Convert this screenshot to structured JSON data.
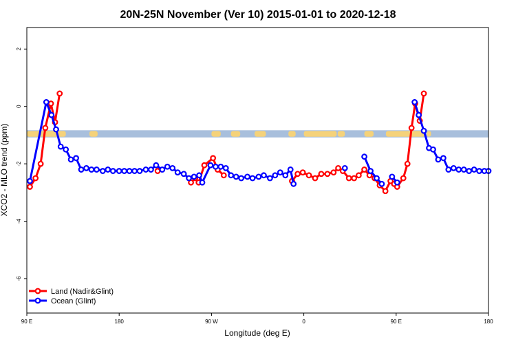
{
  "chart_data": {
    "type": "line",
    "title": "20N-25N November (Ver 10)   2015-01-01 to 2020-12-18",
    "xlabel": "Longitude (deg E)",
    "ylabel": "XCO2 - MLO trend (ppm)",
    "xlim": [
      90,
      540
    ],
    "ylim": [
      -7.2,
      2.75
    ],
    "x_ticks": [
      {
        "value": 90,
        "label": "90 E"
      },
      {
        "value": 180,
        "label": "180"
      },
      {
        "value": 270,
        "label": "90 W"
      },
      {
        "value": 360,
        "label": "0"
      },
      {
        "value": 450,
        "label": "90 E"
      },
      {
        "value": 540,
        "label": "180"
      }
    ],
    "y_ticks": [
      {
        "value": 2,
        "label": "2"
      },
      {
        "value": 0,
        "label": "0"
      },
      {
        "value": -2,
        "label": "-2"
      },
      {
        "value": -4,
        "label": "-4"
      },
      {
        "value": -6,
        "label": "-6"
      }
    ],
    "map_strip": {
      "ymin": -1.08,
      "ymax": -0.83,
      "ocean_color": "#a8bfdc",
      "land_color": "#f5d27a"
    },
    "series": [
      {
        "name": "Land (Nadir&Glint)",
        "color": "#ff0000",
        "segments": [
          [
            [
              93,
              -2.8
            ],
            [
              98.5,
              -2.5
            ],
            [
              103.5,
              -2.0
            ],
            [
              108,
              -0.75
            ],
            [
              113.5,
              0.1
            ],
            [
              117.5,
              -0.55
            ],
            [
              122,
              0.45
            ]
          ],
          [
            [
              217.5,
              -2.25
            ]
          ],
          [
            [
              250,
              -2.65
            ],
            [
              254,
              -2.5
            ],
            [
              257.5,
              -2.65
            ],
            [
              263,
              -2.05
            ],
            [
              271.5,
              -1.8
            ],
            [
              276,
              -2.2
            ],
            [
              282,
              -2.4
            ]
          ],
          [
            [
              348.5,
              -2.6
            ],
            [
              354,
              -2.35
            ],
            [
              359,
              -2.3
            ],
            [
              365,
              -2.4
            ],
            [
              371,
              -2.5
            ],
            [
              377,
              -2.35
            ],
            [
              383,
              -2.35
            ],
            [
              389,
              -2.3
            ],
            [
              393.5,
              -2.15
            ],
            [
              398,
              -2.25
            ],
            [
              404,
              -2.5
            ],
            [
              409,
              -2.5
            ],
            [
              413.5,
              -2.4
            ],
            [
              419,
              -2.2
            ],
            [
              424,
              -2.4
            ],
            [
              429,
              -2.5
            ],
            [
              434,
              -2.75
            ],
            [
              439.5,
              -2.95
            ],
            [
              444.5,
              -2.6
            ],
            [
              448,
              -2.7
            ],
            [
              451,
              -2.8
            ],
            [
              457,
              -2.5
            ],
            [
              461,
              -2.0
            ],
            [
              465,
              -0.75
            ],
            [
              468.5,
              0.1
            ],
            [
              473,
              -0.5
            ],
            [
              477,
              0.45
            ]
          ]
        ]
      },
      {
        "name": "Ocean (Glint)",
        "color": "#0000ff",
        "segments": [
          [
            [
              93,
              -2.6
            ],
            [
              109,
              0.15
            ],
            [
              114,
              -0.3
            ],
            [
              118.5,
              -0.8
            ],
            [
              123,
              -1.4
            ],
            [
              128,
              -1.5
            ],
            [
              133,
              -1.85
            ],
            [
              138,
              -1.8
            ],
            [
              143,
              -2.2
            ],
            [
              148,
              -2.15
            ],
            [
              153,
              -2.2
            ],
            [
              158,
              -2.2
            ],
            [
              164,
              -2.25
            ],
            [
              169,
              -2.2
            ],
            [
              174,
              -2.25
            ],
            [
              180,
              -2.25
            ],
            [
              185,
              -2.25
            ],
            [
              190,
              -2.25
            ],
            [
              195,
              -2.25
            ],
            [
              200,
              -2.25
            ],
            [
              206,
              -2.2
            ],
            [
              211,
              -2.2
            ],
            [
              216,
              -2.05
            ],
            [
              222,
              -2.2
            ],
            [
              227,
              -2.1
            ],
            [
              232,
              -2.15
            ],
            [
              237,
              -2.3
            ],
            [
              243,
              -2.35
            ],
            [
              248,
              -2.5
            ],
            [
              253,
              -2.45
            ],
            [
              258,
              -2.4
            ],
            [
              261,
              -2.65
            ],
            [
              269,
              -2.05
            ],
            [
              274,
              -2.1
            ],
            [
              279,
              -2.1
            ],
            [
              284,
              -2.15
            ],
            [
              289,
              -2.4
            ],
            [
              294,
              -2.45
            ],
            [
              299,
              -2.5
            ],
            [
              305,
              -2.45
            ],
            [
              310,
              -2.5
            ],
            [
              316,
              -2.45
            ],
            [
              321,
              -2.4
            ],
            [
              327,
              -2.5
            ],
            [
              332,
              -2.4
            ],
            [
              337,
              -2.3
            ],
            [
              342,
              -2.4
            ],
            [
              347,
              -2.2
            ],
            [
              350,
              -2.7
            ]
          ],
          [
            [
              400,
              -2.15
            ]
          ],
          [
            [
              419,
              -1.75
            ],
            [
              425,
              -2.25
            ],
            [
              431,
              -2.5
            ],
            [
              436,
              -2.7
            ]
          ],
          [
            [
              446,
              -2.45
            ],
            [
              451,
              -2.65
            ]
          ],
          [
            [
              468,
              0.15
            ],
            [
              472,
              -0.3
            ],
            [
              477,
              -0.85
            ],
            [
              482,
              -1.45
            ],
            [
              486,
              -1.5
            ],
            [
              491,
              -1.85
            ],
            [
              496,
              -1.8
            ],
            [
              501,
              -2.2
            ],
            [
              506,
              -2.15
            ],
            [
              511,
              -2.2
            ],
            [
              516,
              -2.2
            ],
            [
              521,
              -2.25
            ],
            [
              526,
              -2.2
            ],
            [
              531,
              -2.25
            ],
            [
              536,
              -2.25
            ],
            [
              540,
              -2.25
            ]
          ]
        ]
      }
    ],
    "legend": {
      "position": "bottom-left"
    },
    "grid": false
  }
}
